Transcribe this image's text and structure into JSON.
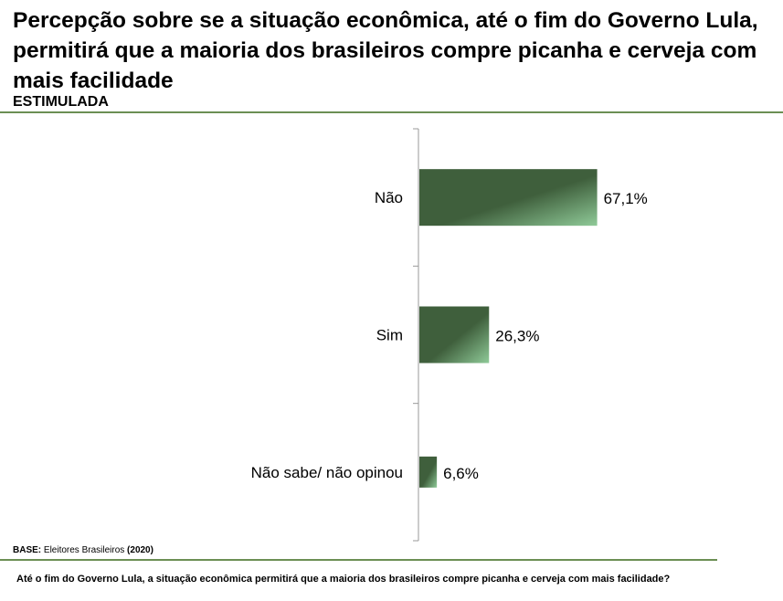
{
  "title": "Percepção sobre se a situação econômica, até o fim do Governo Lula, permitirá que a maioria dos brasileiros compre picanha e cerveja com mais facilidade",
  "subtitle": "ESTIMULADA",
  "base": {
    "label": "BASE:",
    "text": " Eleitores Brasileiros ",
    "n": "(2020)"
  },
  "question": "Até o fim do Governo Lula, a situação econômica permitirá que a maioria dos brasileiros compre picanha e cerveja com mais facilidade?",
  "colors": {
    "bar_dark": "#3f5f3c",
    "bar_light": "#8fca98",
    "rule": "#6b8f54"
  },
  "chart_data": {
    "type": "bar",
    "orientation": "horizontal",
    "categories": [
      "Não",
      "Sim",
      "Não sabe/ não opinou"
    ],
    "values": [
      67.1,
      26.3,
      6.6
    ],
    "labels": [
      "67,1%",
      "26,3%",
      "6,6%"
    ],
    "xlim": [
      0,
      100
    ],
    "grid": false,
    "legend": "none"
  }
}
